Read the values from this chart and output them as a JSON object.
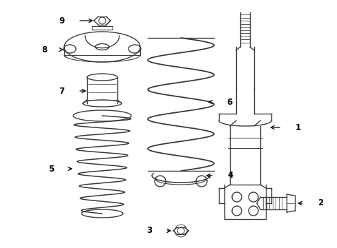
{
  "bg_color": "#ffffff",
  "line_color": "#3a3a3a",
  "fig_w": 4.89,
  "fig_h": 3.6,
  "dpi": 100
}
